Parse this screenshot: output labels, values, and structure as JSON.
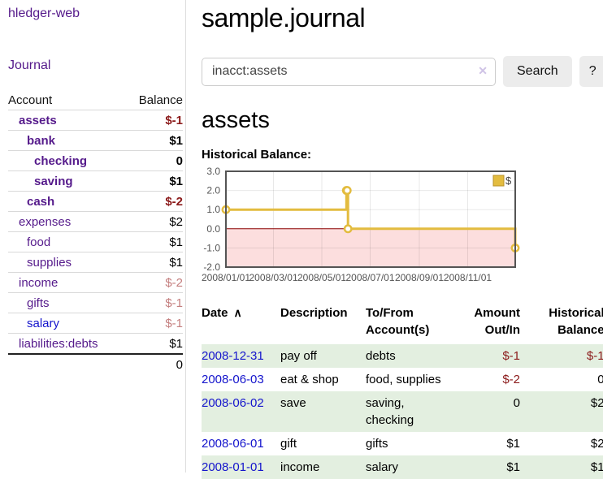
{
  "app": {
    "title": "hledger-web"
  },
  "theme": {
    "link_purple": "#551a8b",
    "link_blue": "#1414cc",
    "negative_strong": "#8b1a1a",
    "negative_dim": "#c47e7e",
    "row_green": "#e3efe0",
    "button_gray": "#ececec"
  },
  "sidebar": {
    "journal_link": "Journal",
    "accounts_header": {
      "account": "Account",
      "balance": "Balance"
    },
    "accounts": [
      {
        "name": "assets",
        "balance": "$-1",
        "depth": 1,
        "emphasized": true,
        "negative": "strong"
      },
      {
        "name": "bank",
        "balance": "$1",
        "depth": 2,
        "emphasized": true
      },
      {
        "name": "checking",
        "balance": "0",
        "depth": 3,
        "emphasized": true
      },
      {
        "name": "saving",
        "balance": "$1",
        "depth": 3,
        "emphasized": true
      },
      {
        "name": "cash",
        "balance": "$-2",
        "depth": 2,
        "emphasized": true,
        "negative": "strong"
      },
      {
        "name": "expenses",
        "balance": "$2",
        "depth": 1
      },
      {
        "name": "food",
        "balance": "$1",
        "depth": 2
      },
      {
        "name": "supplies",
        "balance": "$1",
        "depth": 2
      },
      {
        "name": "income",
        "balance": "$-2",
        "depth": 1,
        "negative": "dim"
      },
      {
        "name": "gifts",
        "balance": "$-1",
        "depth": 2,
        "negative": "dim"
      },
      {
        "name": "salary",
        "balance": "$-1",
        "depth": 2,
        "negative": "dim",
        "link_color": "blue"
      },
      {
        "name": "liabilities:debts",
        "balance": "$1",
        "depth": 1
      }
    ],
    "total": "0"
  },
  "main": {
    "title": "sample.journal",
    "search": {
      "value": "inacct:assets",
      "clear_icon": "✕",
      "search_label": "Search",
      "help_label": "?"
    },
    "heading": "assets",
    "section_label": "Historical Balance:"
  },
  "chart_data": {
    "type": "line",
    "step": true,
    "title": "Historical Balance:",
    "series": [
      {
        "name": "$",
        "color": "#e3bc3f",
        "points": [
          [
            "2008-01-01",
            1
          ],
          [
            "2008-06-01",
            2
          ],
          [
            "2008-06-02",
            2
          ],
          [
            "2008-06-03",
            0
          ],
          [
            "2008-12-31",
            -1
          ]
        ]
      }
    ],
    "xrange": [
      "2008-01-01",
      "2008-12-31"
    ],
    "ylim": [
      -2,
      3
    ],
    "yticks": [
      3,
      2,
      1,
      0,
      -1,
      -2
    ],
    "xticks": [
      "2008-01-01",
      "2008-03-01",
      "2008-05-01",
      "2008-07-01",
      "2008-09-01",
      "2008-11-01"
    ],
    "xtick_format": "YYYY/MM/DD",
    "grid": true,
    "legend": {
      "label": "$",
      "position": "top-right"
    },
    "negative_region_color": "#fcdede",
    "zero_line_color": "#8b0000",
    "axis_text_color": "#545454",
    "border_color": "#545454"
  },
  "register": {
    "headers": [
      "Date",
      "Description",
      "To/From\nAccount(s)",
      "Amount\nOut/In",
      "Historical\nBalance"
    ],
    "sort_icon": "∧",
    "rows": [
      {
        "date": "2008-12-31",
        "description": "pay off",
        "accounts": "debts",
        "amount": "$-1",
        "balance": "$-1"
      },
      {
        "date": "2008-06-03",
        "description": "eat & shop",
        "accounts": "food, supplies",
        "amount": "$-2",
        "balance": "0"
      },
      {
        "date": "2008-06-02",
        "description": "save",
        "accounts": "saving,\nchecking",
        "amount": "0",
        "balance": "$2"
      },
      {
        "date": "2008-06-01",
        "description": "gift",
        "accounts": "gifts",
        "amount": "$1",
        "balance": "$2"
      },
      {
        "date": "2008-01-01",
        "description": "income",
        "accounts": "salary",
        "amount": "$1",
        "balance": "$1"
      }
    ]
  }
}
